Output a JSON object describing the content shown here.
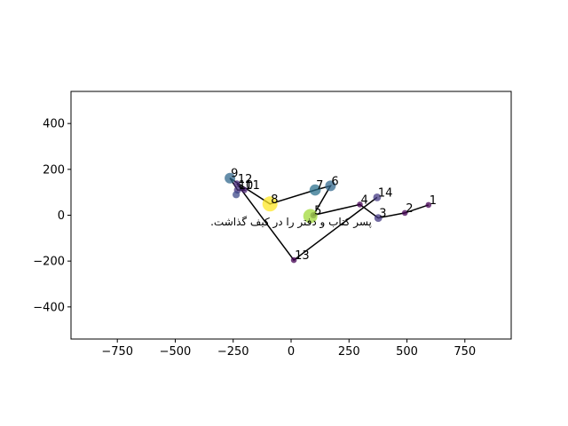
{
  "chart_data": {
    "type": "scatter",
    "xlim": [
      -950,
      950
    ],
    "ylim": [
      -540,
      540
    ],
    "x_ticks": [
      -750,
      -500,
      -250,
      0,
      250,
      500,
      750
    ],
    "y_ticks": [
      -400,
      -200,
      0,
      200,
      400
    ],
    "x_tick_labels": [
      "−750",
      "−500",
      "−250",
      "0",
      "250",
      "500",
      "750"
    ],
    "y_tick_labels": [
      "−400",
      "−200",
      "0",
      "200",
      "400"
    ],
    "grid": false,
    "points": [
      {
        "label": "1",
        "x": 593,
        "y": 45,
        "size": 0.05,
        "color": "#440154"
      },
      {
        "label": "2",
        "x": 491,
        "y": 10,
        "size": 0.05,
        "color": "#440154"
      },
      {
        "label": "3",
        "x": 376,
        "y": -12,
        "size": 0.25,
        "color": "#443983"
      },
      {
        "label": "4",
        "x": 297,
        "y": 47,
        "size": 0.05,
        "color": "#440154"
      },
      {
        "label": "5",
        "x": 96,
        "y": 0,
        "size": 0.1,
        "color": "#481f70"
      },
      {
        "label": "6",
        "x": 170,
        "y": 128,
        "size": 0.55,
        "color": "#31688e"
      },
      {
        "label": "7",
        "x": 104,
        "y": 110,
        "size": 0.6,
        "color": "#2c728e"
      },
      {
        "label": "8",
        "x": -91,
        "y": 49,
        "size": 1.0,
        "color": "#fde725"
      },
      {
        "label": "9",
        "x": -264,
        "y": 162,
        "size": 0.55,
        "color": "#31688e"
      },
      {
        "label": "10",
        "x": -231,
        "y": 110,
        "size": 0.2,
        "color": "#46327e"
      },
      {
        "label": "11",
        "x": -202,
        "y": 110,
        "size": 0.1,
        "color": "#481f70"
      },
      {
        "label": "12",
        "x": -234,
        "y": 137,
        "size": 0.15,
        "color": "#472a7a"
      },
      {
        "label": "13",
        "x": 12,
        "y": -196,
        "size": 0.05,
        "color": "#440154"
      },
      {
        "label": "14",
        "x": 371,
        "y": 78,
        "size": 0.25,
        "color": "#443983"
      },
      {
        "label": "",
        "x": 83,
        "y": -4,
        "size": 0.9,
        "color": "#a0da39"
      },
      {
        "label": "",
        "x": -237,
        "y": 90,
        "size": 0.2,
        "color": "#3e4a89"
      }
    ],
    "line_x": [
      593,
      491,
      376,
      297,
      96,
      170,
      104,
      -91,
      -264,
      -231,
      -202,
      -234,
      12,
      371
    ],
    "line_y": [
      45,
      10,
      -12,
      47,
      0,
      128,
      110,
      49,
      162,
      110,
      110,
      137,
      -196,
      78
    ],
    "annotation": {
      "text": "پسر کتاب و دفتر را در کیف گذاشت.",
      "x": 0,
      "y": -45
    }
  }
}
